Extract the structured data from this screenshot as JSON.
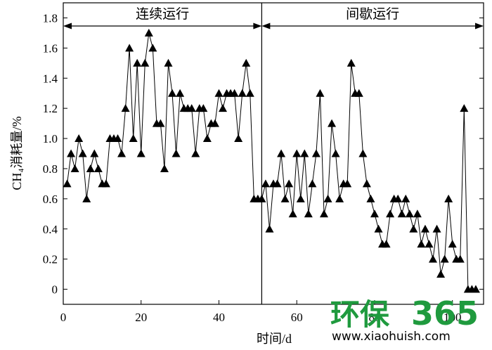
{
  "chart_data": {
    "type": "line",
    "xlabel": "时间/d",
    "ylabel": "CH₄消耗量/%",
    "xlim": [
      0,
      108
    ],
    "ylim": [
      -0.1,
      1.9
    ],
    "xticks": [
      0,
      20,
      40,
      60,
      80,
      100
    ],
    "xtick_labels": [
      "0",
      "20",
      "40",
      "60",
      "80",
      "100"
    ],
    "yticks": [
      0,
      0.2,
      0.4,
      0.6,
      0.8,
      1.0,
      1.2,
      1.4,
      1.6,
      1.8
    ],
    "ytick_labels": [
      "0",
      "0.2",
      "0.4",
      "0.6",
      "0.8",
      "1.0",
      "1.2",
      "1.4",
      "1.6",
      "1.8"
    ],
    "phase_divider_x": 51,
    "phases": [
      {
        "label": "连续运行",
        "x_start": 0,
        "x_end": 51
      },
      {
        "label": "间歇运行",
        "x_start": 51,
        "x_end": 108
      }
    ],
    "marker": "filled-triangle",
    "series": [
      {
        "x": [
          1,
          2,
          3,
          4,
          5,
          6,
          7,
          8,
          9,
          10,
          11,
          12,
          13,
          14,
          15,
          16,
          17,
          18,
          19,
          20,
          21,
          22,
          23,
          24,
          25,
          26,
          27,
          28,
          29,
          30,
          31,
          32,
          33,
          34,
          35,
          36,
          37,
          38,
          39,
          40,
          41,
          42,
          43,
          44,
          45,
          46,
          47,
          48,
          49,
          50,
          51,
          52,
          53,
          54,
          55,
          56,
          57,
          58,
          59,
          60,
          61,
          62,
          63,
          64,
          65,
          66,
          67,
          68,
          69,
          70,
          71,
          72,
          73,
          74,
          75,
          76,
          77,
          78,
          79,
          80,
          81,
          82,
          83,
          84,
          85,
          86,
          87,
          88,
          89,
          90,
          91,
          92,
          93,
          94,
          95,
          96,
          97,
          98,
          99,
          100,
          101,
          102,
          103,
          104,
          105,
          106
        ],
        "y": [
          0.7,
          0.9,
          0.8,
          1.0,
          0.9,
          0.6,
          0.8,
          0.9,
          0.8,
          0.7,
          0.7,
          1.0,
          1.0,
          1.0,
          0.9,
          1.2,
          1.6,
          1.0,
          1.5,
          0.9,
          1.5,
          1.7,
          1.6,
          1.1,
          1.1,
          0.8,
          1.5,
          1.3,
          0.9,
          1.3,
          1.2,
          1.2,
          1.2,
          0.9,
          1.2,
          1.2,
          1.0,
          1.1,
          1.1,
          1.3,
          1.2,
          1.3,
          1.3,
          1.3,
          1.0,
          1.3,
          1.5,
          1.3,
          0.6,
          0.6,
          0.6,
          0.7,
          0.4,
          0.7,
          0.7,
          0.9,
          0.6,
          0.7,
          0.5,
          0.9,
          0.6,
          0.9,
          0.5,
          0.7,
          0.9,
          1.3,
          0.5,
          0.6,
          1.1,
          0.9,
          0.6,
          0.7,
          0.7,
          1.5,
          1.3,
          1.3,
          0.9,
          0.7,
          0.6,
          0.5,
          0.4,
          0.3,
          0.3,
          0.5,
          0.6,
          0.6,
          0.5,
          0.6,
          0.5,
          0.4,
          0.5,
          0.3,
          0.4,
          0.3,
          0.2,
          0.4,
          0.1,
          0.2,
          0.6,
          0.3,
          0.2,
          0.2,
          1.2,
          0,
          0,
          0
        ]
      }
    ]
  },
  "watermark": {
    "brand_cn": "环保",
    "brand_num": "365",
    "url": "www.xiaohuish.com"
  }
}
